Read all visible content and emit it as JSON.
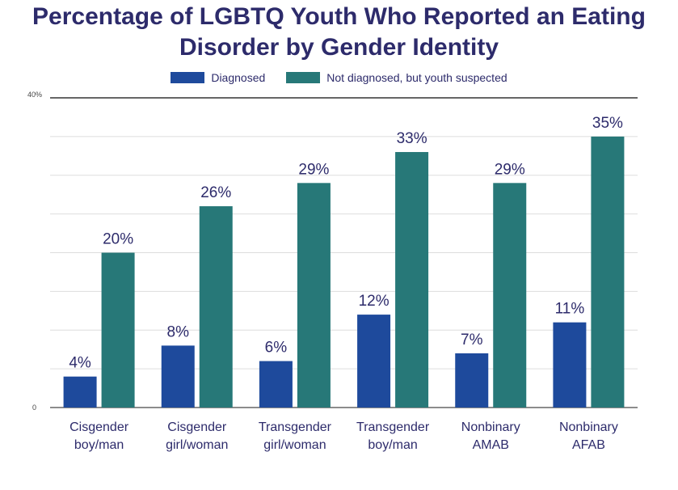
{
  "chart_data": {
    "type": "bar",
    "title_line1": "Percentage of LGBTQ Youth Who Reported an Eating",
    "title_line2": "Disorder by Gender Identity",
    "categories": [
      [
        "Cisgender",
        "boy/man"
      ],
      [
        "Cisgender",
        "girl/woman"
      ],
      [
        "Transgender",
        "girl/woman"
      ],
      [
        "Transgender",
        "boy/man"
      ],
      [
        "Nonbinary",
        "AMAB"
      ],
      [
        "Nonbinary",
        "AFAB"
      ]
    ],
    "series": [
      {
        "name": "Diagnosed",
        "color": "#1e4a9c",
        "values": [
          4,
          8,
          6,
          12,
          7,
          11
        ]
      },
      {
        "name": "Not diagnosed, but youth suspected",
        "color": "#277878",
        "values": [
          20,
          26,
          29,
          33,
          29,
          35
        ]
      }
    ],
    "ylim": [
      0,
      40
    ],
    "y_tick_labels": {
      "min": "0",
      "max": "40%"
    },
    "gridlines": true,
    "legend_position": "top-center",
    "value_suffix": "%"
  }
}
